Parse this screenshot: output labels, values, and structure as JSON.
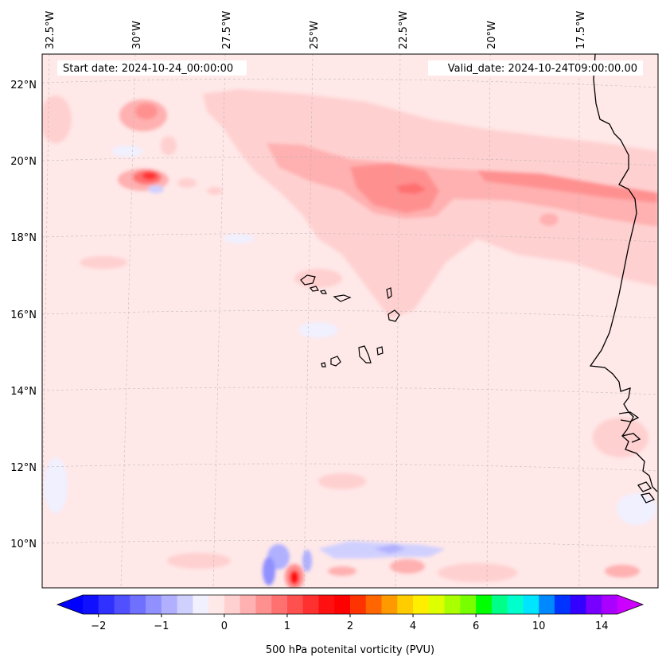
{
  "map": {
    "start_label": "Start date: 2024-10-24_00:00:00",
    "valid_label": "Valid_date: 2024-10-24T09:00:00.00",
    "lon_ticks": [
      "32.5°W",
      "30°W",
      "27.5°W",
      "25°W",
      "22.5°W",
      "20°W",
      "17.5°W"
    ],
    "lat_ticks": [
      "22°N",
      "20°N",
      "18°N",
      "16°N",
      "14°N",
      "12°N",
      "10°N"
    ],
    "gridlines": true,
    "coastline": true
  },
  "colorbar": {
    "label": "500 hPa potenital vorticity (PVU)",
    "tick_labels": [
      "−2",
      "−1",
      "0",
      "1",
      "2",
      "4",
      "6",
      "10",
      "14"
    ],
    "extend": "both",
    "colors": [
      "#1010ff",
      "#3030ff",
      "#5050ff",
      "#7070ff",
      "#9090ff",
      "#b0b0ff",
      "#d0d0ff",
      "#f0f0ff",
      "#ffe8e8",
      "#ffd0d0",
      "#ffb0b0",
      "#ff9090",
      "#ff7070",
      "#ff5050",
      "#ff3030",
      "#ff1010",
      "#ff0000",
      "#ff3300",
      "#ff6600",
      "#ff9900",
      "#ffcc00",
      "#ffee00",
      "#ddff00",
      "#aaff00",
      "#77ff00",
      "#00ff00",
      "#00ff88",
      "#00ffcc",
      "#00e5ff",
      "#0088ff",
      "#0033ff",
      "#3300ff",
      "#7700ff",
      "#aa00ff"
    ],
    "under_color": "#0000ff",
    "over_color": "#cc00ff"
  }
}
